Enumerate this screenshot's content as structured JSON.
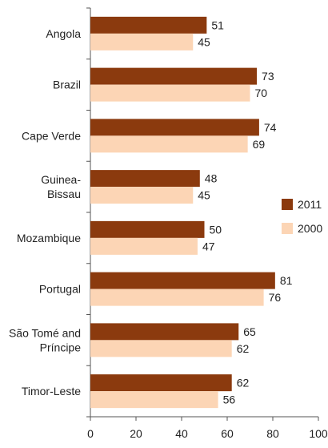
{
  "chart_data": {
    "type": "bar",
    "orientation": "horizontal",
    "categories": [
      "Angola",
      "Brazil",
      "Cape Verde",
      "Guinea-\nBissau",
      "Mozambique",
      "Portugal",
      "São Tomé and\nPríncipe",
      "Timor-Leste"
    ],
    "series": [
      {
        "name": "2011",
        "color": "#8B3A0E",
        "values": [
          51,
          73,
          74,
          48,
          50,
          81,
          65,
          62
        ]
      },
      {
        "name": "2000",
        "color": "#FCD5B5",
        "values": [
          45,
          70,
          69,
          45,
          47,
          76,
          62,
          56
        ]
      }
    ],
    "title": "",
    "xlabel": "",
    "ylabel": "",
    "xlim": [
      0,
      100
    ],
    "xticks": [
      0,
      20,
      40,
      60,
      80,
      100
    ],
    "data_labels": true,
    "grid": false,
    "legend_position": "right"
  }
}
